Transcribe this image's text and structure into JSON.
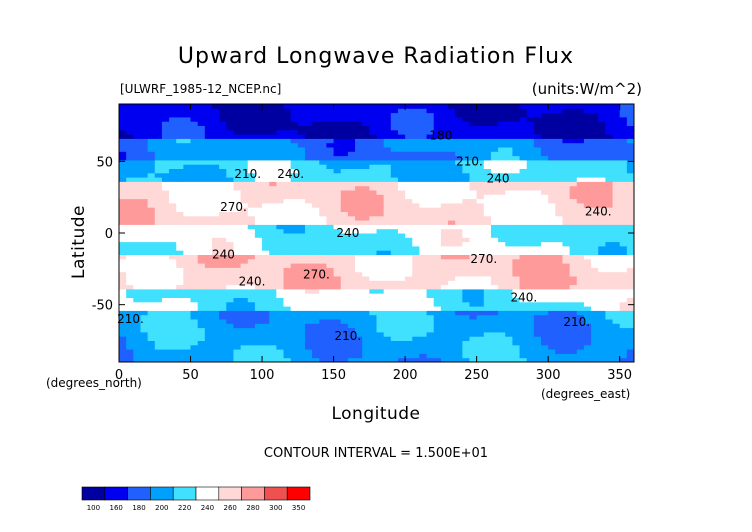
{
  "title": "Upward Longwave Radiation Flux",
  "file_label": "[ULWRF_1985-12_NCEP.nc]",
  "units_label": "(units:W/m^2)",
  "contour_note": "CONTOUR INTERVAL = 1.500E+01",
  "chart_data": {
    "type": "heatmap",
    "title": "Upward Longwave Radiation Flux",
    "xlabel": "Longitude",
    "ylabel": "Latitude",
    "x_unit_label": "(degrees_north)",
    "x_unit_label_east": "(degrees_east)",
    "xlim": [
      0,
      360
    ],
    "ylim": [
      -90,
      90
    ],
    "x_ticks": [
      0,
      50,
      100,
      150,
      200,
      250,
      300,
      350
    ],
    "y_ticks": [
      -50,
      0,
      50
    ],
    "contour_labels": [
      {
        "text": "180",
        "lon": 225,
        "lat": 68
      },
      {
        "text": "210.",
        "lon": 90,
        "lat": 41
      },
      {
        "text": "240.",
        "lon": 120,
        "lat": 41
      },
      {
        "text": "270.",
        "lon": 80,
        "lat": 18
      },
      {
        "text": "240",
        "lon": 160,
        "lat": 0
      },
      {
        "text": "240",
        "lon": 73,
        "lat": -15
      },
      {
        "text": "270.",
        "lon": 138,
        "lat": -29
      },
      {
        "text": "240.",
        "lon": 93,
        "lat": -34
      },
      {
        "text": "210.",
        "lon": 245,
        "lat": 50
      },
      {
        "text": "240",
        "lon": 265,
        "lat": 38
      },
      {
        "text": "240.",
        "lon": 335,
        "lat": 15
      },
      {
        "text": "270.",
        "lon": 255,
        "lat": -18
      },
      {
        "text": "240.",
        "lon": 283,
        "lat": -45
      },
      {
        "text": "210.",
        "lon": 8,
        "lat": -60
      },
      {
        "text": "210.",
        "lon": 160,
        "lat": -72
      },
      {
        "text": "210.",
        "lon": 320,
        "lat": -62
      }
    ],
    "latitude_bands": [
      {
        "lat_range": [
          65,
          90
        ],
        "value_approx": 165
      },
      {
        "lat_range": [
          50,
          65
        ],
        "value_approx": 200
      },
      {
        "lat_range": [
          35,
          50
        ],
        "value_approx": 225
      },
      {
        "lat_range": [
          5,
          35
        ],
        "value_approx": 265
      },
      {
        "lat_range": [
          -15,
          5
        ],
        "value_approx": 240
      },
      {
        "lat_range": [
          -40,
          -15
        ],
        "value_approx": 270
      },
      {
        "lat_range": [
          -55,
          -40
        ],
        "value_approx": 240
      },
      {
        "lat_range": [
          -90,
          -55
        ],
        "value_approx": 210
      }
    ],
    "colorbar": {
      "labels": [
        "100",
        "160",
        "180",
        "200",
        "220",
        "240",
        "260",
        "280",
        "300",
        "350"
      ],
      "colors": [
        "#0000a0",
        "#0000f0",
        "#2060ff",
        "#00a0ff",
        "#40e0ff",
        "#ffffff",
        "#ffd8d8",
        "#ff9a9a",
        "#f05050",
        "#ff0000"
      ]
    }
  }
}
